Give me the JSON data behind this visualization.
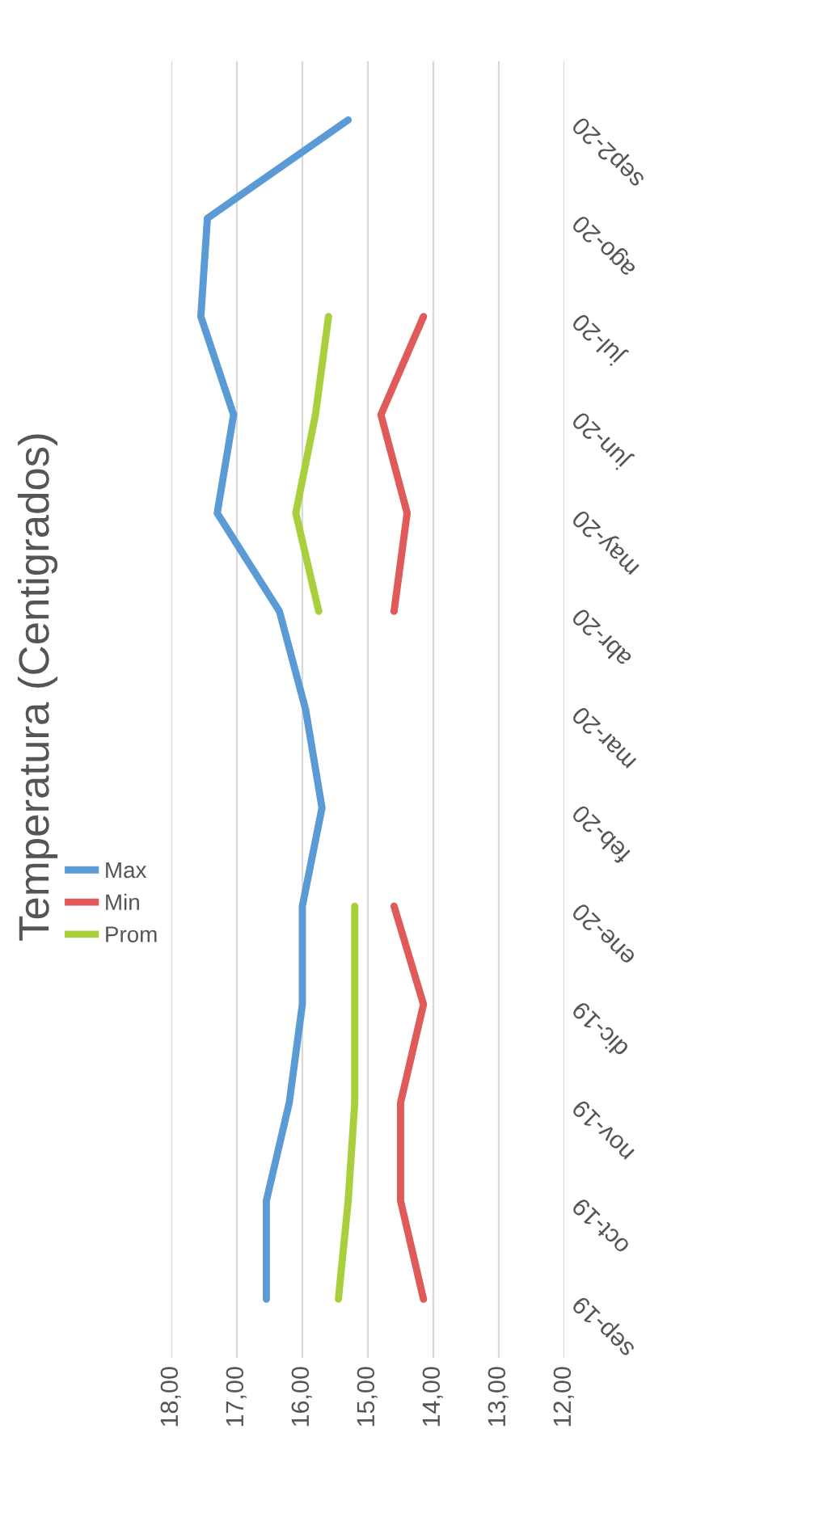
{
  "chart_data": {
    "type": "line",
    "title": "Temperatura (Centigrados)",
    "orientation": "horizontal",
    "categories": [
      "sep2-20",
      "ago-20",
      "jul-20",
      "jun-20",
      "may-20",
      "abr-20",
      "mar-20",
      "feb-20",
      "ene-20",
      "dic-19",
      "nov-19",
      "oct-19",
      "sep-19"
    ],
    "series": [
      {
        "name": "Max",
        "color": "#5b9bd5",
        "values": [
          15.3,
          17.45,
          17.55,
          17.05,
          17.3,
          16.35,
          15.95,
          15.7,
          16,
          16,
          16.2,
          16.55,
          16.55
        ]
      },
      {
        "name": "Min",
        "color": "#e05a5a",
        "values": [
          null,
          null,
          14.15,
          14.8,
          14.4,
          14.6,
          null,
          null,
          14.6,
          14.15,
          14.5,
          14.5,
          14.15
        ]
      },
      {
        "name": "Prom",
        "color": "#a9cf3c",
        "values": [
          null,
          null,
          15.6,
          15.8,
          16.1,
          15.75,
          null,
          null,
          15.2,
          15.2,
          15.2,
          15.3,
          15.45
        ]
      }
    ],
    "xlim": [
      18,
      12
    ],
    "xticks": [
      {
        "value": 18,
        "label": "18,00"
      },
      {
        "value": 17,
        "label": "17,00"
      },
      {
        "value": 16,
        "label": "16,00"
      },
      {
        "value": 15,
        "label": "15,00"
      },
      {
        "value": 14,
        "label": "14,00"
      },
      {
        "value": 13,
        "label": "13,00"
      },
      {
        "value": 12,
        "label": "12,00"
      }
    ],
    "grid": "x",
    "legend": "left",
    "marker": "none",
    "line_style": "solid"
  }
}
